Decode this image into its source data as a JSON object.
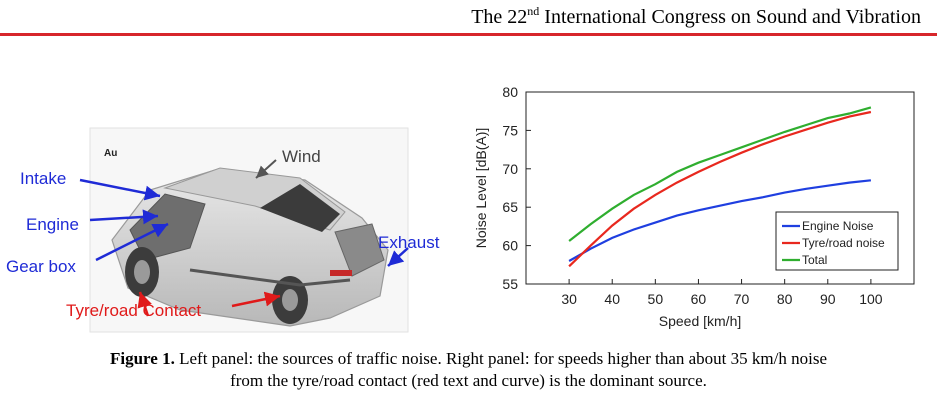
{
  "header": {
    "title_prefix": "The 22",
    "title_sup": "nd",
    "title_suffix": " International Congress on Sound and Vibration"
  },
  "left_panel": {
    "labels": {
      "intake": "Intake",
      "engine": "Engine",
      "gearbox": "Gear box",
      "wind": "Wind",
      "exhaust": "Exhaust",
      "tyre_road": "Tyre/road Contact"
    },
    "logo_text": "Au",
    "colors": {
      "blue_label": "#1f2bd6",
      "red_label": "#e01a1a"
    }
  },
  "chart_data": {
    "type": "line",
    "xlabel": "Speed [km/h]",
    "ylabel": "Noise Level [dB(A)]",
    "xlim": [
      20,
      110
    ],
    "ylim": [
      55,
      80
    ],
    "xticks": [
      30,
      40,
      50,
      60,
      70,
      80,
      90,
      100
    ],
    "yticks": [
      55,
      60,
      65,
      70,
      75,
      80
    ],
    "grid": false,
    "legend": "bottom-right",
    "series": [
      {
        "name": "Engine Noise",
        "color": "#1f3fe0",
        "x": [
          30,
          35,
          40,
          45,
          50,
          55,
          60,
          65,
          70,
          75,
          80,
          85,
          90,
          95,
          100
        ],
        "y": [
          58.0,
          59.6,
          61.0,
          62.1,
          63.0,
          63.9,
          64.6,
          65.2,
          65.8,
          66.3,
          66.9,
          67.4,
          67.8,
          68.2,
          68.5
        ]
      },
      {
        "name": "Tyre/road noise",
        "color": "#e8281e",
        "x": [
          30,
          35,
          40,
          45,
          50,
          55,
          60,
          65,
          70,
          75,
          80,
          85,
          90,
          95,
          100
        ],
        "y": [
          57.3,
          60.0,
          62.6,
          64.8,
          66.6,
          68.2,
          69.6,
          70.9,
          72.1,
          73.2,
          74.2,
          75.1,
          76.0,
          76.8,
          77.4
        ]
      },
      {
        "name": "Total",
        "color": "#2fae2f",
        "x": [
          30,
          35,
          40,
          45,
          50,
          55,
          60,
          65,
          70,
          75,
          80,
          85,
          90,
          95,
          100
        ],
        "y": [
          60.6,
          62.8,
          64.8,
          66.6,
          68.0,
          69.6,
          70.8,
          71.8,
          72.8,
          73.8,
          74.8,
          75.7,
          76.6,
          77.2,
          78.0
        ]
      }
    ]
  },
  "caption": {
    "label": "Figure 1.",
    "line1": " Left panel: the sources of traffic noise. Right panel: for speeds higher than about 35 km/h noise",
    "line2": "from the tyre/road contact (red text and curve) is the dominant source."
  }
}
